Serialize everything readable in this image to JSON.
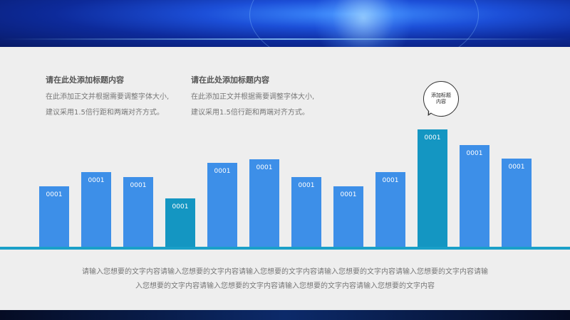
{
  "text_blocks": [
    {
      "heading": "请在此处添加标题内容",
      "body_line1": "在此添加正文并根据需要调整字体大小,",
      "body_line2": "建议采用1.5倍行距和两端对齐方式。"
    },
    {
      "heading": "请在此处添加标题内容",
      "body_line1": "在此添加正文并根据需要调整字体大小,",
      "body_line2": "建议采用1.5倍行距和两端对齐方式。"
    }
  ],
  "callout": {
    "text": "添加标题内容"
  },
  "footer": {
    "line1": "请输入您想要的文字内容请输入您想要的文字内容请输入您想要的文字内容请输入您想要的文字内容请输入您想要的文字内容请输",
    "line2": "入您想要的文字内容请输入您想要的文字内容请输入您想要的文字内容请输入您想要的文字内容"
  },
  "colors": {
    "bar_primary": "#3d8fe8",
    "bar_highlight": "#1496c2",
    "baseline": "#1aa0c8"
  },
  "chart_data": {
    "type": "bar",
    "title": "",
    "xlabel": "",
    "ylabel": "",
    "categories": [
      "",
      "",
      "",
      "",
      "",
      "",
      "",
      "",
      "",
      "",
      "",
      ""
    ],
    "values": [
      85,
      105,
      98,
      68,
      118,
      123,
      98,
      85,
      105,
      165,
      143,
      124
    ],
    "data_labels": [
      "0001",
      "0001",
      "0001",
      "0001",
      "0001",
      "0001",
      "0001",
      "0001",
      "0001",
      "0001",
      "0001",
      "0001"
    ],
    "highlight": [
      false,
      false,
      false,
      true,
      false,
      false,
      false,
      false,
      false,
      true,
      false,
      false
    ],
    "ylim": [
      0,
      165
    ],
    "grid": false,
    "legend": "none"
  }
}
